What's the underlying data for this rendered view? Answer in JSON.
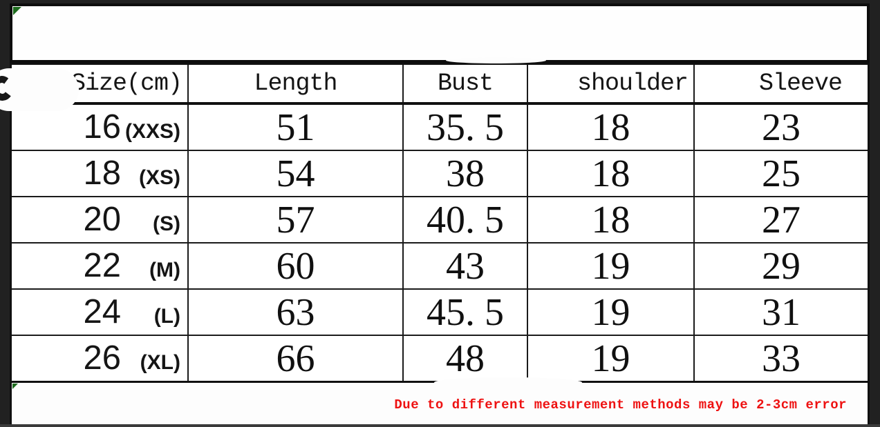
{
  "colors": {
    "background": "#212121",
    "panel_white": "#fefefe",
    "line_black": "#101010",
    "note_red": "#ee1111",
    "corner_marker_green": "#1d6b1d"
  },
  "table": {
    "headers": [
      "Size(cm)",
      "Length",
      "Bust",
      "shoulder",
      "Sleeve"
    ],
    "rows": [
      {
        "size": "16",
        "tag": "(XXS)",
        "length": "51",
        "bust": "35. 5",
        "shoulder": "18",
        "sleeve": "23"
      },
      {
        "size": "18",
        "tag": "(XS)",
        "length": "54",
        "bust": "38",
        "shoulder": "18",
        "sleeve": "25"
      },
      {
        "size": "20",
        "tag": "(S)",
        "length": "57",
        "bust": "40. 5",
        "shoulder": "18",
        "sleeve": "27"
      },
      {
        "size": "22",
        "tag": "(M)",
        "length": "60",
        "bust": "43",
        "shoulder": "19",
        "sleeve": "29"
      },
      {
        "size": "24",
        "tag": "(L)",
        "length": "63",
        "bust": "45. 5",
        "shoulder": "19",
        "sleeve": "31"
      },
      {
        "size": "26",
        "tag": "(XL)",
        "length": "66",
        "bust": "48",
        "shoulder": "19",
        "sleeve": "33"
      }
    ]
  },
  "note": {
    "text": "Due to different measurement methods may be 2-3cm error"
  },
  "chart_data": {
    "type": "table",
    "columns": [
      "Size(cm)",
      "Length",
      "Bust",
      "shoulder",
      "Sleeve"
    ],
    "rows": [
      [
        "16 (XXS)",
        51,
        35.5,
        18,
        23
      ],
      [
        "18 (XS)",
        54,
        38,
        18,
        25
      ],
      [
        "20 (S)",
        57,
        40.5,
        18,
        27
      ],
      [
        "22 (M)",
        60,
        43,
        19,
        29
      ],
      [
        "24 (L)",
        63,
        45.5,
        19,
        31
      ],
      [
        "26 (XL)",
        66,
        48,
        19,
        33
      ]
    ],
    "footnote": "Due to different measurement methods may be 2-3cm error"
  }
}
